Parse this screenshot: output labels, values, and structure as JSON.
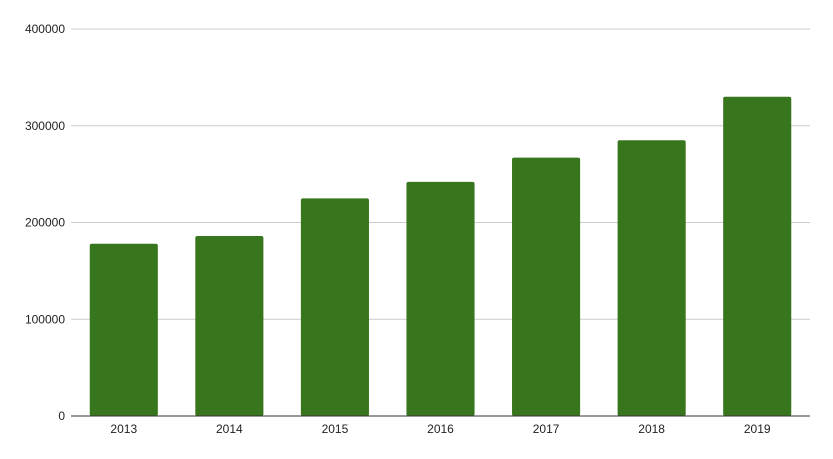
{
  "chart_data": {
    "type": "bar",
    "title": "",
    "xlabel": "",
    "ylabel": "",
    "categories": [
      "2013",
      "2014",
      "2015",
      "2016",
      "2017",
      "2018",
      "2019"
    ],
    "values": [
      178000,
      186000,
      225000,
      242000,
      267000,
      285000,
      330000
    ],
    "ylim": [
      0,
      400000
    ],
    "yticks": [
      0,
      100000,
      200000,
      300000,
      400000
    ],
    "ytick_labels": [
      "0",
      "100000",
      "200000",
      "300000",
      "400000"
    ],
    "grid": true,
    "legend": "none",
    "colors": {
      "bar": "#38761d"
    }
  }
}
